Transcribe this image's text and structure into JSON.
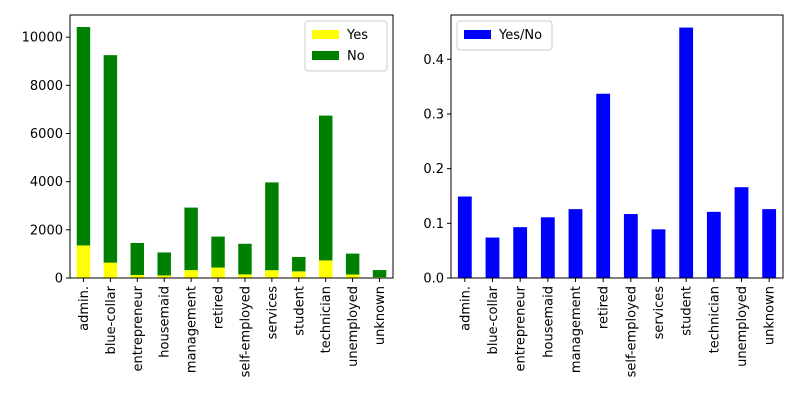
{
  "chart_data": [
    {
      "type": "bar",
      "stacked": true,
      "categories": [
        "admin.",
        "blue-collar",
        "entrepreneur",
        "housemaid",
        "management",
        "retired",
        "self-employed",
        "services",
        "student",
        "technician",
        "unemployed",
        "unknown"
      ],
      "series": [
        {
          "name": "Yes",
          "color": "#ffff00",
          "values": [
            1352,
            638,
            124,
            106,
            328,
            434,
            149,
            323,
            275,
            730,
            144,
            37
          ]
        },
        {
          "name": "No",
          "color": "#008000",
          "values": [
            9070,
            8616,
            1332,
            954,
            2596,
            1286,
            1272,
            3646,
            600,
            6013,
            870,
            293
          ]
        }
      ],
      "title": "",
      "xlabel": "",
      "ylabel": "",
      "ylim": [
        0,
        10921
      ],
      "yticks": [
        0,
        2000,
        4000,
        6000,
        8000,
        10000
      ],
      "grid": false,
      "legend_position": "upper right",
      "xtick_rotation": 90
    },
    {
      "type": "bar",
      "stacked": false,
      "categories": [
        "admin.",
        "blue-collar",
        "entrepreneur",
        "housemaid",
        "management",
        "retired",
        "self-employed",
        "services",
        "student",
        "technician",
        "unemployed",
        "unknown"
      ],
      "series": [
        {
          "name": "Yes/No",
          "color": "#0000ff",
          "values": [
            0.149,
            0.074,
            0.093,
            0.111,
            0.126,
            0.337,
            0.117,
            0.089,
            0.458,
            0.121,
            0.166,
            0.126
          ]
        }
      ],
      "title": "",
      "xlabel": "",
      "ylabel": "",
      "ylim": [
        0,
        0.481
      ],
      "yticks": [
        "0.0",
        "0.1",
        "0.2",
        "0.3",
        "0.4"
      ],
      "yticks_values": [
        0.0,
        0.1,
        0.2,
        0.3,
        0.4
      ],
      "grid": false,
      "legend_position": "upper left",
      "xtick_rotation": 90
    }
  ]
}
